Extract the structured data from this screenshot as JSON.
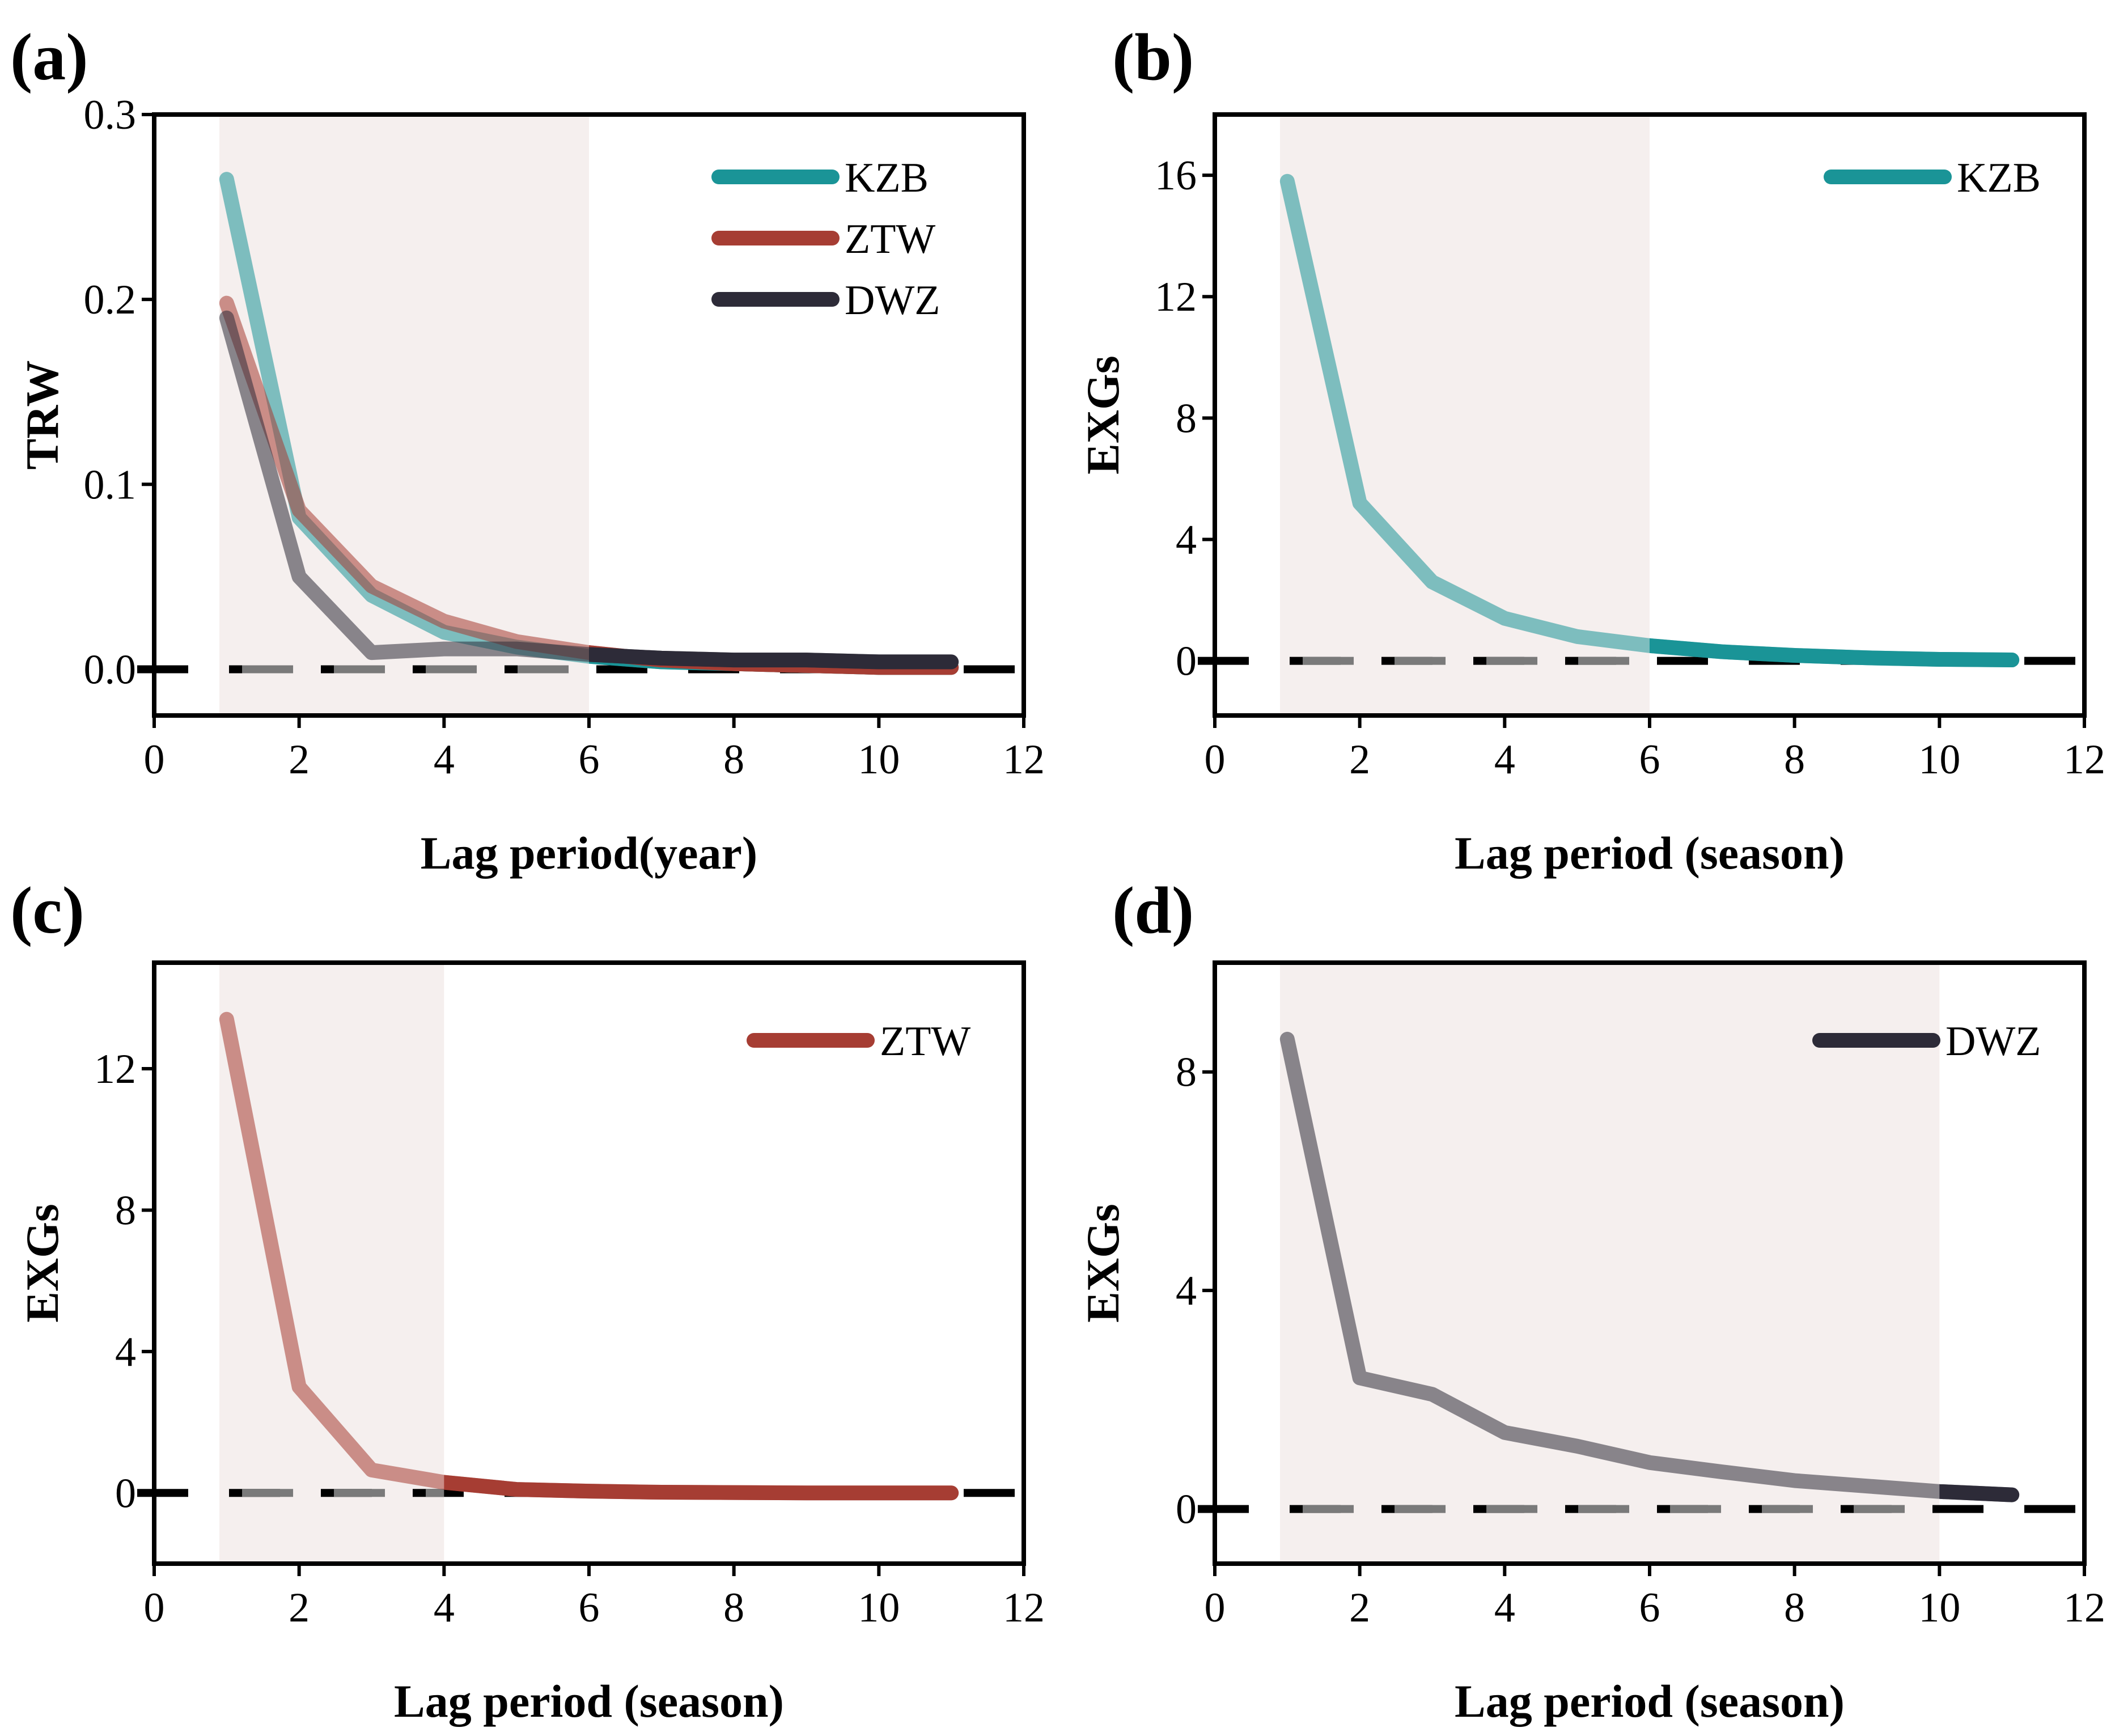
{
  "colors": {
    "KZB": "#1a9497",
    "ZTW": "#a63d33",
    "DWZ": "#2d2b38",
    "shade": "#f5efee",
    "zero_line": "#000000",
    "dash": "#7a7a7a"
  },
  "chart_data": [
    {
      "panel": "(a)",
      "type": "line",
      "ylabel": "TRW",
      "xlabel": "Lag period(year)",
      "xlim": [
        0,
        12
      ],
      "ylim": [
        -0.025,
        0.3
      ],
      "xticks": [
        0,
        2,
        4,
        6,
        8,
        10,
        12
      ],
      "yticks": [
        0.0,
        0.1,
        0.2,
        0.3
      ],
      "ytick_labels": [
        "0.0",
        "0.1",
        "0.2",
        "0.3"
      ],
      "shade": [
        0.9,
        6
      ],
      "x": [
        1,
        2,
        3,
        4,
        5,
        6,
        7,
        8,
        9,
        10,
        11
      ],
      "series": [
        {
          "name": "KZB",
          "values": [
            0.265,
            0.082,
            0.04,
            0.02,
            0.012,
            0.007,
            0.004,
            0.003,
            0.002,
            0.001,
            0.001
          ]
        },
        {
          "name": "ZTW",
          "values": [
            0.198,
            0.086,
            0.045,
            0.026,
            0.015,
            0.009,
            0.005,
            0.003,
            0.002,
            0.001,
            0.001
          ]
        },
        {
          "name": "DWZ",
          "values": [
            0.19,
            0.05,
            0.009,
            0.011,
            0.011,
            0.008,
            0.006,
            0.005,
            0.005,
            0.004,
            0.004
          ]
        }
      ]
    },
    {
      "panel": "(b)",
      "type": "line",
      "ylabel": "EXGs",
      "xlabel": "Lag period (season)",
      "xlim": [
        0,
        12
      ],
      "ylim": [
        -1.8,
        18
      ],
      "xticks": [
        0,
        2,
        4,
        6,
        8,
        10,
        12
      ],
      "yticks": [
        0,
        4,
        8,
        12,
        16
      ],
      "ytick_labels": [
        "0",
        "4",
        "8",
        "12",
        "16"
      ],
      "shade": [
        0.9,
        6
      ],
      "x": [
        1,
        2,
        3,
        4,
        5,
        6,
        7,
        8,
        9,
        10,
        11
      ],
      "series": [
        {
          "name": "KZB",
          "values": [
            15.8,
            5.2,
            2.6,
            1.4,
            0.8,
            0.5,
            0.3,
            0.18,
            0.1,
            0.05,
            0.03
          ]
        }
      ]
    },
    {
      "panel": "(c)",
      "type": "line",
      "ylabel": "EXGs",
      "xlabel": "Lag period (season)",
      "xlim": [
        0,
        12
      ],
      "ylim": [
        -2.0,
        15
      ],
      "xticks": [
        0,
        2,
        4,
        6,
        8,
        10,
        12
      ],
      "yticks": [
        0,
        4,
        8,
        12
      ],
      "ytick_labels": [
        "0",
        "4",
        "8",
        "12"
      ],
      "shade": [
        0.9,
        4
      ],
      "x": [
        1,
        2,
        3,
        4,
        5,
        6,
        7,
        8,
        9,
        10,
        11
      ],
      "series": [
        {
          "name": "ZTW",
          "values": [
            13.4,
            3.0,
            0.65,
            0.3,
            0.1,
            0.05,
            0.02,
            0.01,
            0.0,
            0.0,
            0.0
          ]
        }
      ]
    },
    {
      "panel": "(d)",
      "type": "line",
      "ylabel": "EXGs",
      "xlabel": "Lag period (season)",
      "xlim": [
        0,
        12
      ],
      "ylim": [
        -1.0,
        10
      ],
      "xticks": [
        0,
        2,
        4,
        6,
        8,
        10,
        12
      ],
      "yticks": [
        0,
        4,
        8
      ],
      "ytick_labels": [
        "0",
        "4",
        "8"
      ],
      "shade": [
        0.9,
        10
      ],
      "x": [
        1,
        2,
        3,
        4,
        5,
        6,
        7,
        8,
        9,
        10,
        11
      ],
      "series": [
        {
          "name": "DWZ",
          "values": [
            8.6,
            2.4,
            2.1,
            1.4,
            1.15,
            0.85,
            0.68,
            0.52,
            0.42,
            0.32,
            0.26
          ]
        }
      ]
    }
  ]
}
